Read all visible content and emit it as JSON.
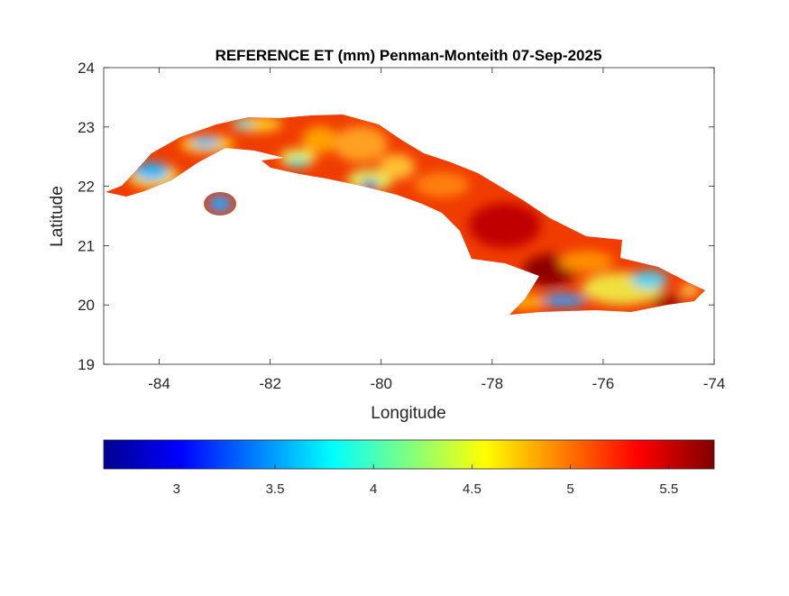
{
  "chart_data": {
    "type": "heatmap",
    "title": "REFERENCE ET (mm) Penman-Monteith 07-Sep-2025",
    "xlabel": "Longitude",
    "ylabel": "Latitude",
    "xlim": [
      -85,
      -74
    ],
    "ylim": [
      19,
      24
    ],
    "xticks": [
      -84,
      -82,
      -80,
      -78,
      -76,
      -74
    ],
    "yticks": [
      19,
      20,
      21,
      22,
      23,
      24
    ],
    "grid": false,
    "colormap": "jet",
    "colorbar": {
      "location": "bottom",
      "range": [
        2.63,
        5.73
      ],
      "ticks": [
        3,
        3.5,
        4,
        4.5,
        5,
        5.5
      ]
    },
    "colors": {
      "low": "#00008f",
      "mid": "#ffff00",
      "high": "#800000"
    }
  }
}
